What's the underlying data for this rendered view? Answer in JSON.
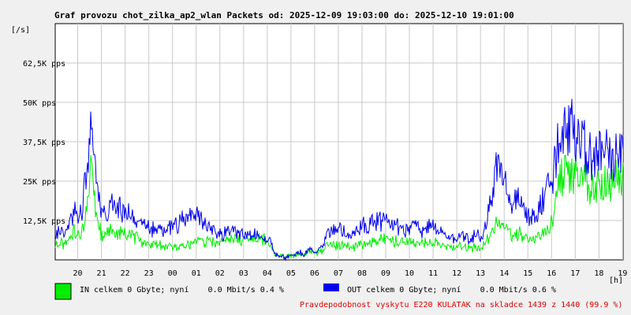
{
  "chart_data": {
    "type": "line",
    "title": "Graf provozu chot_zilka_ap2_wlan Packets od: 2025-12-09 19:03:00 do: 2025-12-10 19:01:00",
    "ylabel": "[/s]",
    "xlabel": "[h]",
    "ylim": [
      0,
      75000
    ],
    "grid": true,
    "y_ticks": [
      {
        "value": 12500,
        "label": "12,5K pps"
      },
      {
        "value": 25000,
        "label": "25K pps"
      },
      {
        "value": 37500,
        "label": "37,5K pps"
      },
      {
        "value": 50000,
        "label": "50K pps"
      },
      {
        "value": 62500,
        "label": "62,5K pps"
      }
    ],
    "x_ticks": [
      "20",
      "21",
      "22",
      "23",
      "00",
      "01",
      "02",
      "03",
      "04",
      "05",
      "06",
      "07",
      "08",
      "09",
      "10",
      "11",
      "12",
      "13",
      "14",
      "15",
      "16",
      "17",
      "18",
      "19"
    ],
    "x_hours_from_start": [
      0.95,
      1.95,
      2.95,
      3.95,
      4.95,
      5.95,
      6.95,
      7.95,
      8.95,
      9.95,
      10.95,
      11.95,
      12.95,
      13.95,
      14.95,
      15.95,
      16.95,
      17.95,
      18.95,
      19.95,
      20.95,
      21.95,
      22.95,
      23.95
    ],
    "x_range_hours": [
      0,
      23.97
    ],
    "series": [
      {
        "name": "IN",
        "color": "#00ee00",
        "x": [
          0,
          0.5,
          0.8,
          1,
          1.3,
          1.5,
          1.6,
          1.8,
          2,
          2.3,
          2.5,
          3,
          3.5,
          4,
          4.5,
          5,
          5.5,
          6,
          6.5,
          7,
          7.5,
          8,
          8.5,
          9,
          9.3,
          9.7,
          10,
          10.3,
          10.5,
          10.8,
          11,
          11.3,
          11.5,
          12,
          12.5,
          13,
          13.5,
          14,
          14.5,
          15,
          15.5,
          16,
          16.5,
          17,
          17.5,
          18,
          18.5,
          18.7,
          19,
          19.3,
          19.5,
          20,
          20.3,
          20.5,
          21,
          21.2,
          21.5,
          21.7,
          22,
          22.3,
          22.5,
          22.7,
          23,
          23.3,
          23.6,
          23.97
        ],
        "values": [
          5000,
          5200,
          9000,
          7500,
          14000,
          28000,
          23000,
          12000,
          7000,
          9000,
          8500,
          8000,
          6500,
          5000,
          4500,
          4000,
          4800,
          6000,
          5500,
          6000,
          6500,
          7000,
          6800,
          6500,
          1500,
          1000,
          1200,
          2000,
          1500,
          2800,
          2500,
          3000,
          5000,
          4500,
          4000,
          4800,
          6000,
          7000,
          5500,
          5500,
          5000,
          5500,
          4000,
          4200,
          4000,
          4200,
          10000,
          14000,
          11000,
          7500,
          8500,
          6500,
          7000,
          8000,
          12000,
          25000,
          27000,
          26000,
          27000,
          26500,
          23000,
          22000,
          24000,
          25000,
          25500,
          26500
        ]
      },
      {
        "name": "OUT",
        "color": "#0000ee",
        "x": [
          0,
          0.5,
          0.8,
          1,
          1.3,
          1.5,
          1.6,
          1.8,
          2,
          2.3,
          2.5,
          3,
          3.5,
          4,
          4.5,
          5,
          5.5,
          6,
          6.5,
          7,
          7.5,
          8,
          8.5,
          9,
          9.3,
          9.7,
          10,
          10.3,
          10.5,
          10.8,
          11,
          11.3,
          11.5,
          12,
          12.5,
          13,
          13.5,
          14,
          14.5,
          15,
          15.5,
          16,
          16.5,
          17,
          17.5,
          18,
          18.5,
          18.7,
          19,
          19.3,
          19.5,
          20,
          20.3,
          20.5,
          21,
          21.2,
          21.5,
          21.7,
          22,
          22.3,
          22.5,
          22.7,
          23,
          23.3,
          23.6,
          23.97
        ],
        "values": [
          8000,
          9000,
          16000,
          11000,
          25000,
          40000,
          32000,
          20000,
          15000,
          16000,
          17000,
          15000,
          13000,
          10000,
          9000,
          11000,
          14000,
          14000,
          10000,
          8000,
          9000,
          8000,
          7500,
          7000,
          1500,
          800,
          1000,
          2500,
          1800,
          3500,
          3000,
          4500,
          9000,
          10000,
          8500,
          11000,
          12000,
          13000,
          10000,
          10000,
          9500,
          11000,
          7000,
          7500,
          7000,
          7500,
          22000,
          32000,
          28000,
          15000,
          20000,
          13000,
          15000,
          18000,
          25000,
          37000,
          40000,
          42000,
          38000,
          37000,
          34000,
          32000,
          33000,
          35000,
          32000,
          33500
        ]
      }
    ],
    "legend": [
      {
        "name": "IN",
        "color": "#00ee00",
        "text": "IN celkem 0 Gbyte; nyní    0.0 Mbit/s 0.4 %"
      },
      {
        "name": "OUT",
        "color": "#0000ee",
        "text": "OUT celkem 0 Gbyte; nyní    0.0 Mbit/s 0.6 %"
      }
    ],
    "footer_note": "Pravdepodobnost vyskytu E220 KULATAK na skladce 1439 z 1440 (99.9 %)",
    "colors": {
      "background": "#f0f0f0",
      "plot_background": "#ffffff",
      "grid": "#c8c8c8",
      "footer": "#e00000"
    }
  }
}
